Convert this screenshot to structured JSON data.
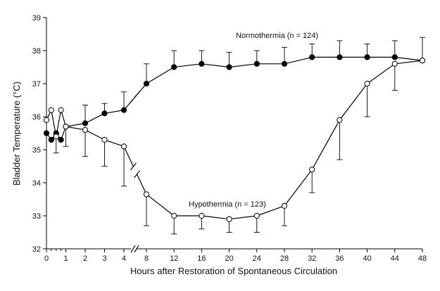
{
  "chart_data": {
    "type": "line",
    "title": "",
    "xlabel": "Hours after Restoration of Spontaneous Circulation",
    "ylabel": "Bladder Temperature (°C)",
    "ylim": [
      32,
      39
    ],
    "yticks": [
      32,
      33,
      34,
      35,
      36,
      37,
      38,
      39
    ],
    "xticks": [
      0,
      1,
      2,
      3,
      4,
      8,
      12,
      16,
      20,
      24,
      28,
      32,
      36,
      40,
      44,
      48
    ],
    "x_minor_ticks": [
      0.25,
      0.5,
      0.75
    ],
    "axis_break_between": [
      4,
      8
    ],
    "grid": false,
    "legend": "none",
    "error_bars": "upper (normothermia) / lower (hypothermia)",
    "series": [
      {
        "name": "Normothermia (n=124)",
        "marker": "filled-circle",
        "color": "#000000",
        "points": [
          {
            "x": 0,
            "y": 35.5,
            "err": 0.0
          },
          {
            "x": 0.25,
            "y": 35.3,
            "err": 0.0
          },
          {
            "x": 0.5,
            "y": 35.5,
            "err": 0.0
          },
          {
            "x": 0.75,
            "y": 35.3,
            "err": 0.0
          },
          {
            "x": 1,
            "y": 35.7,
            "err": 0.0
          },
          {
            "x": 2,
            "y": 35.8,
            "err": 0.55
          },
          {
            "x": 3,
            "y": 36.1,
            "err": 0.3
          },
          {
            "x": 4,
            "y": 36.2,
            "err": 0.55
          },
          {
            "x": 8,
            "y": 37.0,
            "err": 0.6
          },
          {
            "x": 12,
            "y": 37.5,
            "err": 0.5
          },
          {
            "x": 16,
            "y": 37.6,
            "err": 0.4
          },
          {
            "x": 20,
            "y": 37.5,
            "err": 0.45
          },
          {
            "x": 24,
            "y": 37.6,
            "err": 0.4
          },
          {
            "x": 28,
            "y": 37.6,
            "err": 0.5
          },
          {
            "x": 32,
            "y": 37.8,
            "err": 0.4
          },
          {
            "x": 36,
            "y": 37.8,
            "err": 0.5
          },
          {
            "x": 40,
            "y": 37.8,
            "err": 0.4
          },
          {
            "x": 44,
            "y": 37.8,
            "err": 0.5
          },
          {
            "x": 48,
            "y": 37.7,
            "err": 0.7
          }
        ]
      },
      {
        "name": "Hypothermia (n=123)",
        "marker": "open-circle",
        "color": "#000000",
        "points": [
          {
            "x": 0,
            "y": 35.9,
            "err": 0.0
          },
          {
            "x": 0.25,
            "y": 36.2,
            "err": 0.0
          },
          {
            "x": 0.5,
            "y": 35.4,
            "err": 0.5
          },
          {
            "x": 0.75,
            "y": 36.2,
            "err": 0.0
          },
          {
            "x": 1,
            "y": 35.7,
            "err": 0.6
          },
          {
            "x": 2,
            "y": 35.6,
            "err": 0.8
          },
          {
            "x": 3,
            "y": 35.3,
            "err": 0.8
          },
          {
            "x": 4,
            "y": 35.1,
            "err": 1.2
          },
          {
            "x": 8,
            "y": 33.65,
            "err": 0.95
          },
          {
            "x": 12,
            "y": 33.0,
            "err": 0.55
          },
          {
            "x": 16,
            "y": 33.0,
            "err": 0.4
          },
          {
            "x": 20,
            "y": 32.9,
            "err": 0.4
          },
          {
            "x": 24,
            "y": 33.0,
            "err": 0.5
          },
          {
            "x": 28,
            "y": 33.3,
            "err": 0.6
          },
          {
            "x": 32,
            "y": 34.4,
            "err": 0.7
          },
          {
            "x": 36,
            "y": 35.9,
            "err": 1.2
          },
          {
            "x": 40,
            "y": 37.0,
            "err": 1.0
          },
          {
            "x": 44,
            "y": 37.6,
            "err": 0.8
          },
          {
            "x": 48,
            "y": 37.7,
            "err": 0.0
          }
        ]
      }
    ]
  },
  "labels": {
    "normothermia": "Normothermia (n = 124)",
    "hypothermia": "Hypothermia (n = 123)"
  }
}
